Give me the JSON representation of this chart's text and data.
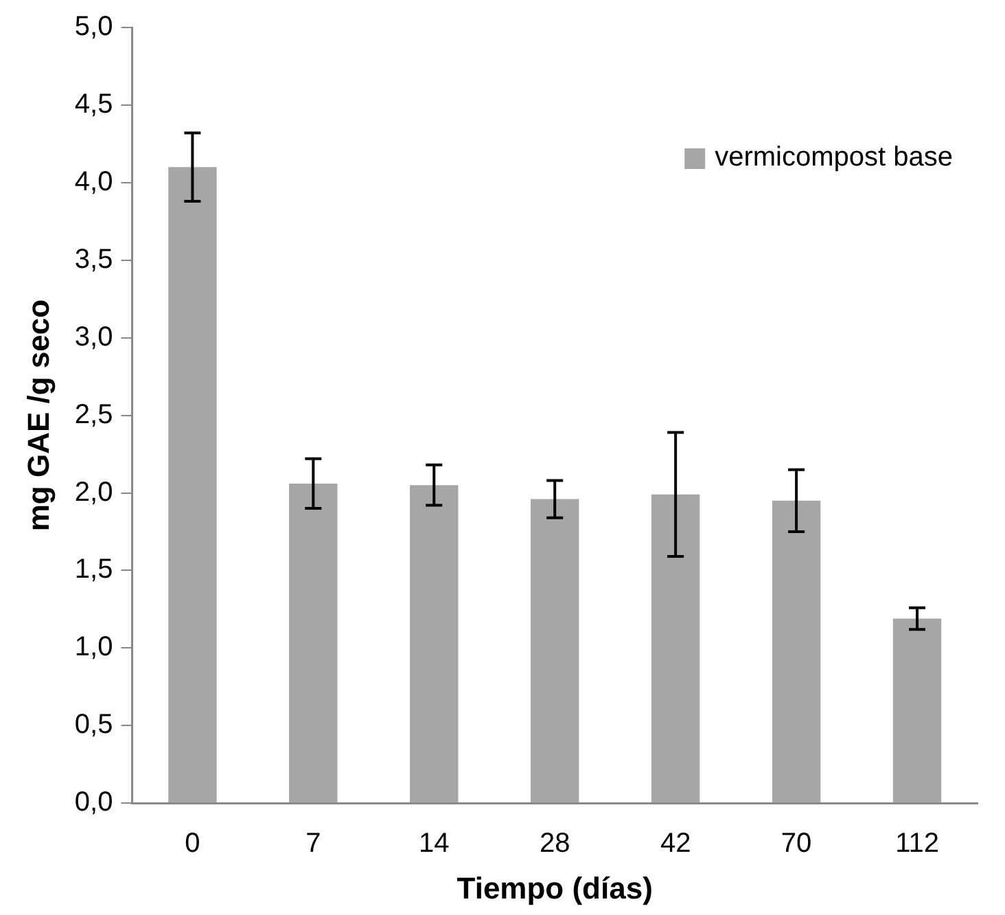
{
  "chart_data": {
    "type": "bar",
    "xlabel": "Tiempo (días)",
    "ylabel": "mg GAE /g seco",
    "categories": [
      "0",
      "7",
      "14",
      "28",
      "42",
      "70",
      "112"
    ],
    "series": [
      {
        "name": "vermicompost base",
        "color": "#a6a6a6",
        "values": [
          4.1,
          2.06,
          2.05,
          1.96,
          1.99,
          1.95,
          1.19
        ],
        "errors": [
          0.22,
          0.16,
          0.13,
          0.12,
          0.4,
          0.2,
          0.07
        ]
      }
    ],
    "ylim": [
      0,
      5
    ],
    "yticks": [
      {
        "value": 0,
        "label": "0,0"
      },
      {
        "value": 0.5,
        "label": "0,5"
      },
      {
        "value": 1,
        "label": "1,0"
      },
      {
        "value": 1.5,
        "label": "1,5"
      },
      {
        "value": 2,
        "label": "2,0"
      },
      {
        "value": 2.5,
        "label": "2,5"
      },
      {
        "value": 3,
        "label": "3,0"
      },
      {
        "value": 3.5,
        "label": "3,5"
      },
      {
        "value": 4,
        "label": "4,0"
      },
      {
        "value": 4.5,
        "label": "4,5"
      },
      {
        "value": 5,
        "label": "5,0"
      }
    ],
    "grid": false,
    "legend": "top right"
  }
}
